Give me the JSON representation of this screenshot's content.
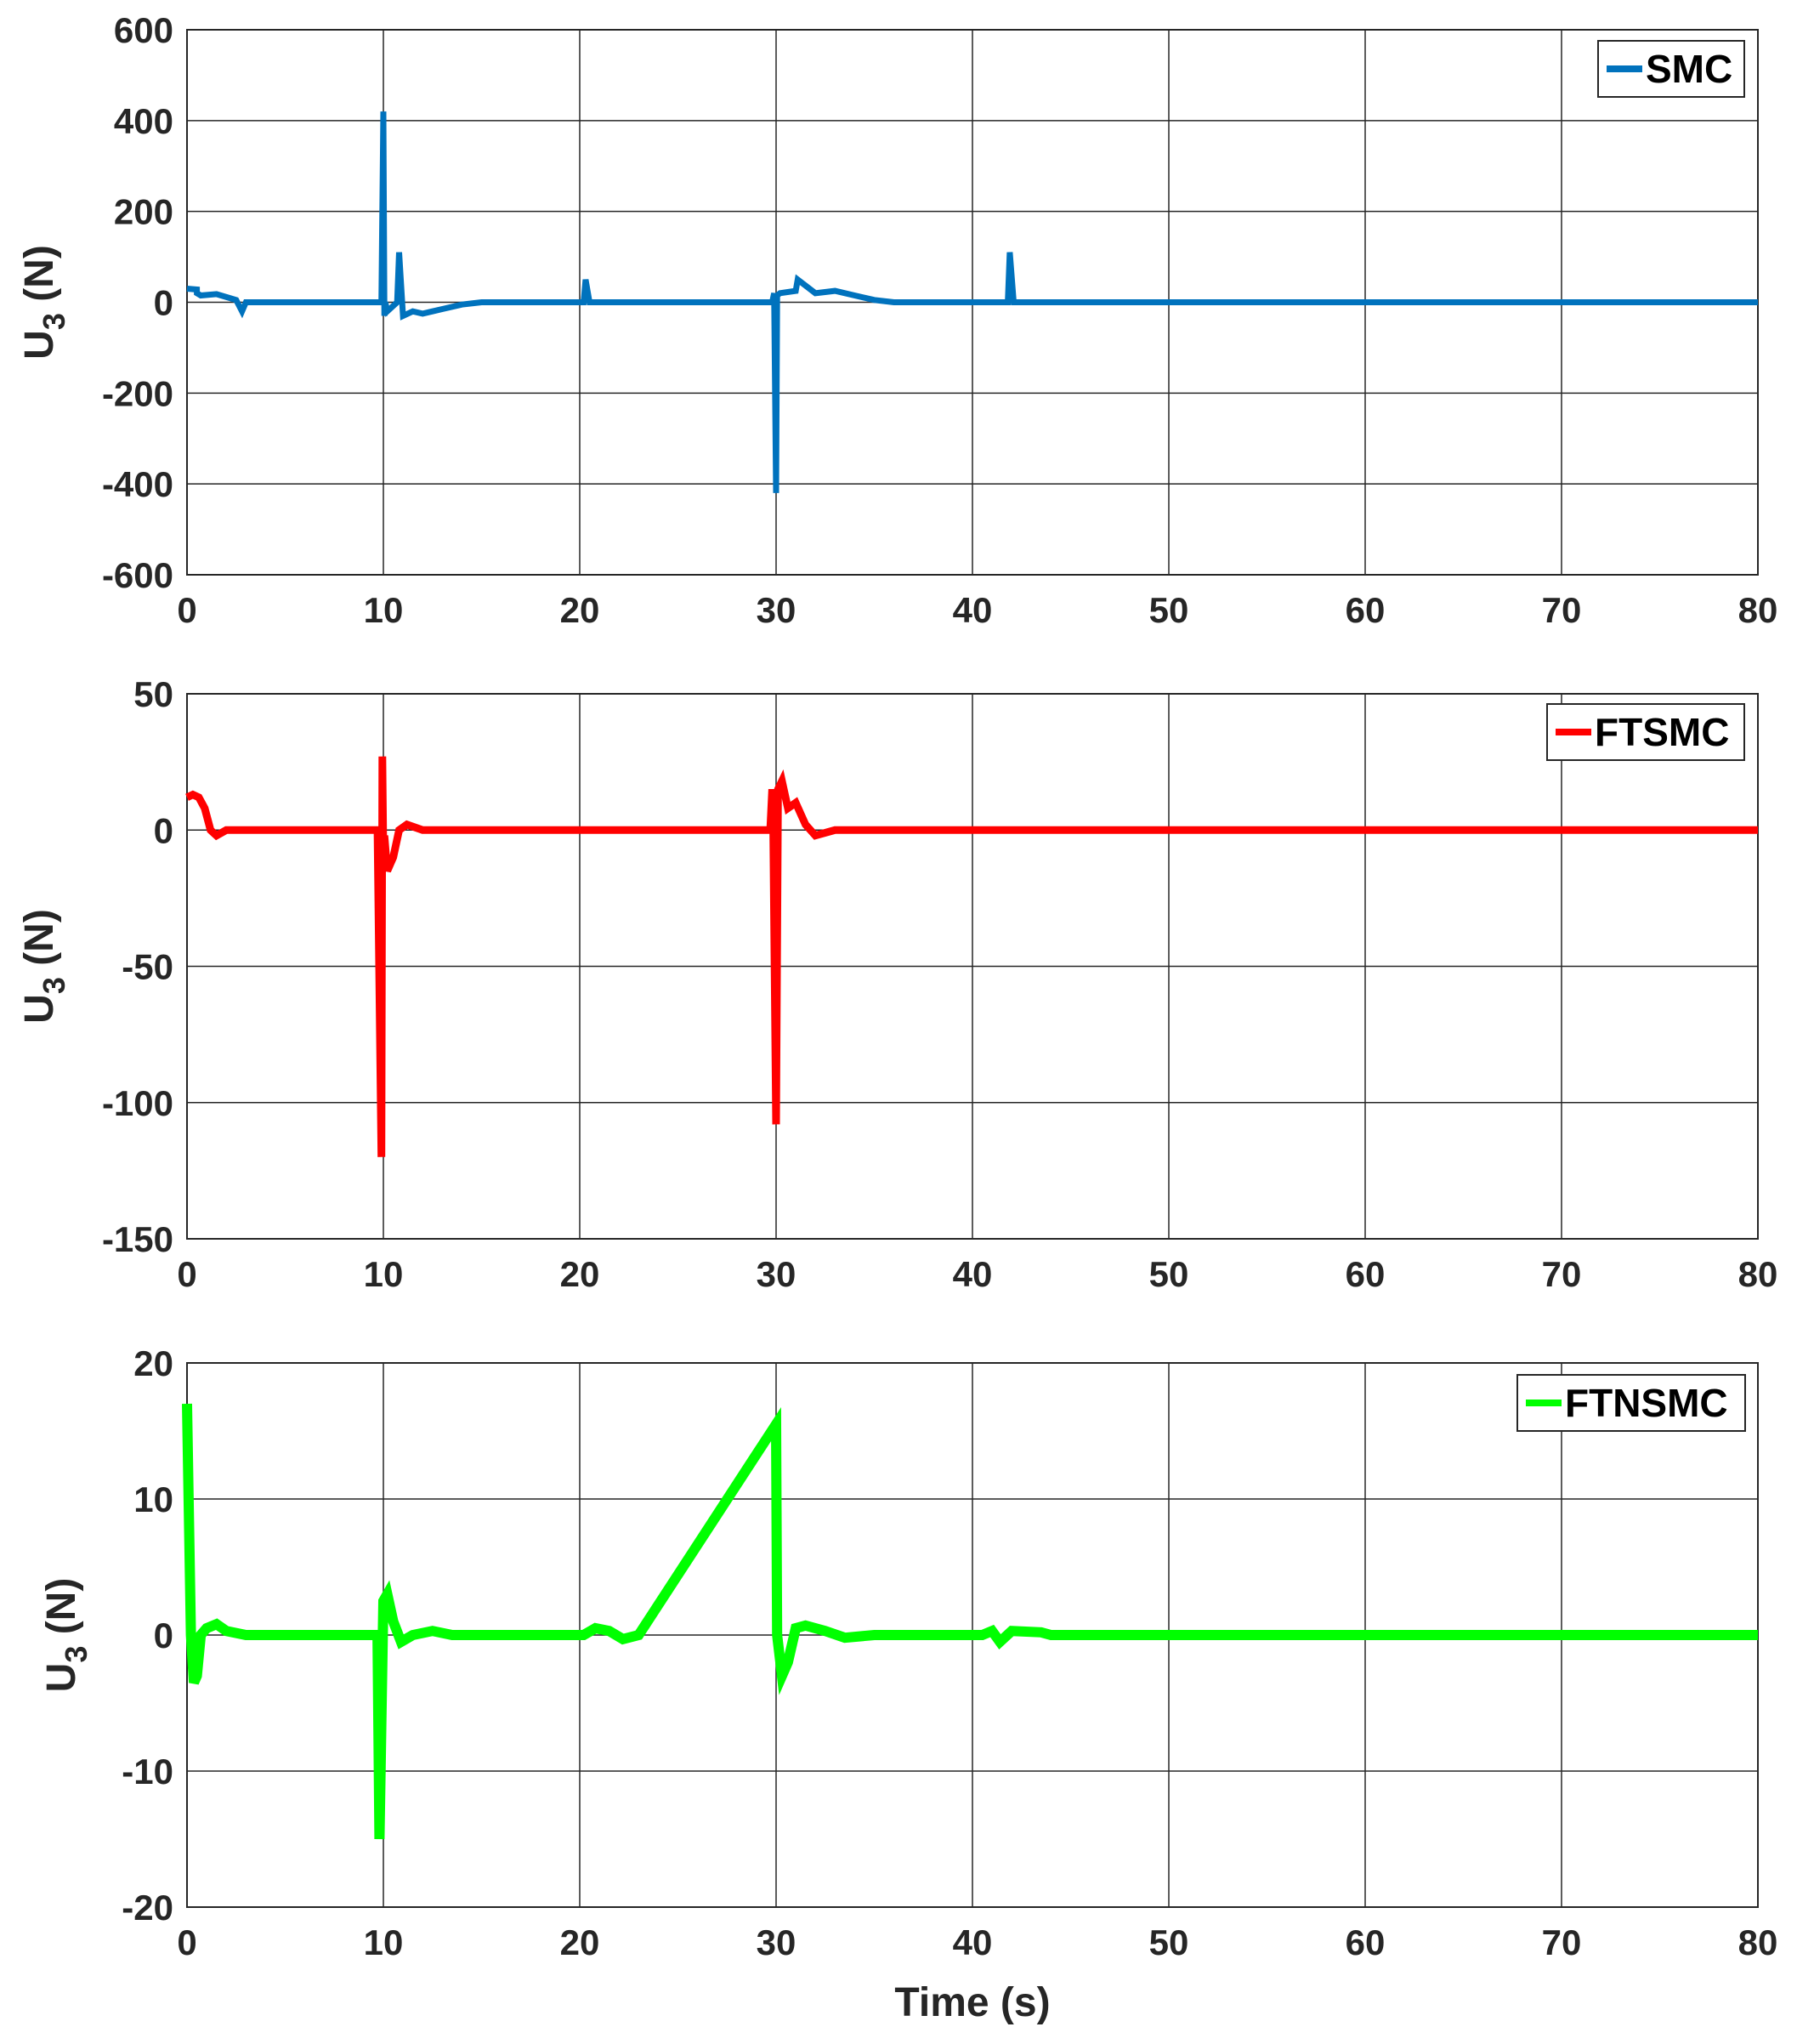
{
  "chart_data": [
    {
      "type": "line",
      "xlabel": "",
      "ylabel": "U",
      "ylabel_sub": "3",
      "ylabel_unit": "(N)",
      "xlim": [
        0,
        80
      ],
      "ylim": [
        -600,
        600
      ],
      "xticks": [
        0,
        10,
        20,
        30,
        40,
        50,
        60,
        70,
        80
      ],
      "yticks": [
        -600,
        -400,
        -200,
        0,
        200,
        400,
        600
      ],
      "grid": true,
      "legend_position": "top-right",
      "series": [
        {
          "name": "SMC",
          "color": "#0072BD",
          "x": [
            0,
            0.5,
            0.5,
            0.7,
            1.5,
            2.5,
            2.8,
            3.0,
            5,
            9.9,
            10.0,
            10.05,
            10.1,
            10.2,
            10.7,
            10.8,
            11.0,
            11.5,
            12,
            13,
            14,
            15,
            20.2,
            20.3,
            20.5,
            20.7,
            29.8,
            29.9,
            30.0,
            30.05,
            30.2,
            31,
            31.1,
            32,
            33,
            34,
            35,
            36,
            41.8,
            41.9,
            42.1,
            42.2,
            80
          ],
          "y": [
            30,
            28,
            20,
            15,
            18,
            5,
            -20,
            0,
            0,
            0,
            420,
            -30,
            0,
            -20,
            0,
            110,
            -30,
            -20,
            -25,
            -15,
            -5,
            0,
            0,
            50,
            0,
            0,
            0,
            20,
            -420,
            15,
            20,
            25,
            50,
            20,
            25,
            15,
            5,
            0,
            0,
            110,
            0,
            0,
            0
          ]
        }
      ]
    },
    {
      "type": "line",
      "xlabel": "",
      "ylabel": "U",
      "ylabel_sub": "3",
      "ylabel_unit": "(N)",
      "xlim": [
        0,
        80
      ],
      "ylim": [
        -150,
        50
      ],
      "xticks": [
        0,
        10,
        20,
        30,
        40,
        50,
        60,
        70,
        80
      ],
      "yticks": [
        -150,
        -100,
        -50,
        0,
        50
      ],
      "grid": true,
      "legend_position": "top-right",
      "series": [
        {
          "name": "FTSMC",
          "color": "#FF0000",
          "x": [
            0,
            0.3,
            0.6,
            0.9,
            1.2,
            1.5,
            2,
            3,
            9.7,
            9.9,
            9.95,
            10.0,
            10.05,
            10.2,
            10.5,
            10.8,
            11.2,
            12,
            13,
            29.7,
            29.8,
            29.85,
            30.0,
            30.1,
            30.3,
            30.6,
            31.0,
            31.5,
            32,
            33,
            80
          ],
          "y": [
            12,
            13,
            12,
            8,
            0,
            -2,
            0,
            0,
            0,
            -120,
            27,
            -10,
            -2,
            -15,
            -10,
            0,
            2,
            0,
            0,
            0,
            15,
            5,
            -108,
            15,
            18,
            8,
            10,
            2,
            -2,
            0,
            0
          ]
        }
      ]
    },
    {
      "type": "line",
      "xlabel": "Time (s)",
      "ylabel": "U",
      "ylabel_sub": "3",
      "ylabel_unit": "(N)",
      "xlim": [
        0,
        80
      ],
      "ylim": [
        -20,
        20
      ],
      "xticks": [
        0,
        10,
        20,
        30,
        40,
        50,
        60,
        70,
        80
      ],
      "yticks": [
        -20,
        -10,
        0,
        10,
        20
      ],
      "grid": true,
      "legend_position": "top-right",
      "series": [
        {
          "name": "FTNSMC",
          "color": "#00FF00",
          "x": [
            0,
            0.2,
            0.35,
            0.5,
            0.7,
            1.0,
            1.5,
            2.0,
            3,
            5,
            9.5,
            9.7,
            9.8,
            10.0,
            10.2,
            10.5,
            10.9,
            11.5,
            12.5,
            13.5,
            15,
            20.2,
            20.8,
            21.5,
            22.2,
            23,
            30.0,
            30.05,
            30.3,
            30.6,
            31,
            31.5,
            32.5,
            33.5,
            35,
            40.5,
            41,
            41.4,
            42,
            43.5,
            44,
            80
          ],
          "y": [
            17,
            0,
            -3.5,
            -3,
            0,
            0.5,
            0.8,
            0.3,
            0,
            0,
            0,
            0,
            -15,
            2.5,
            3,
            1,
            -0.5,
            0,
            0.3,
            0,
            0,
            0,
            0.5,
            0.3,
            -0.3,
            0,
            15.5,
            0,
            -3,
            -2,
            0.5,
            0.7,
            0.3,
            -0.2,
            0,
            0,
            0.3,
            -0.5,
            0.3,
            0.2,
            0,
            0
          ]
        }
      ]
    }
  ]
}
